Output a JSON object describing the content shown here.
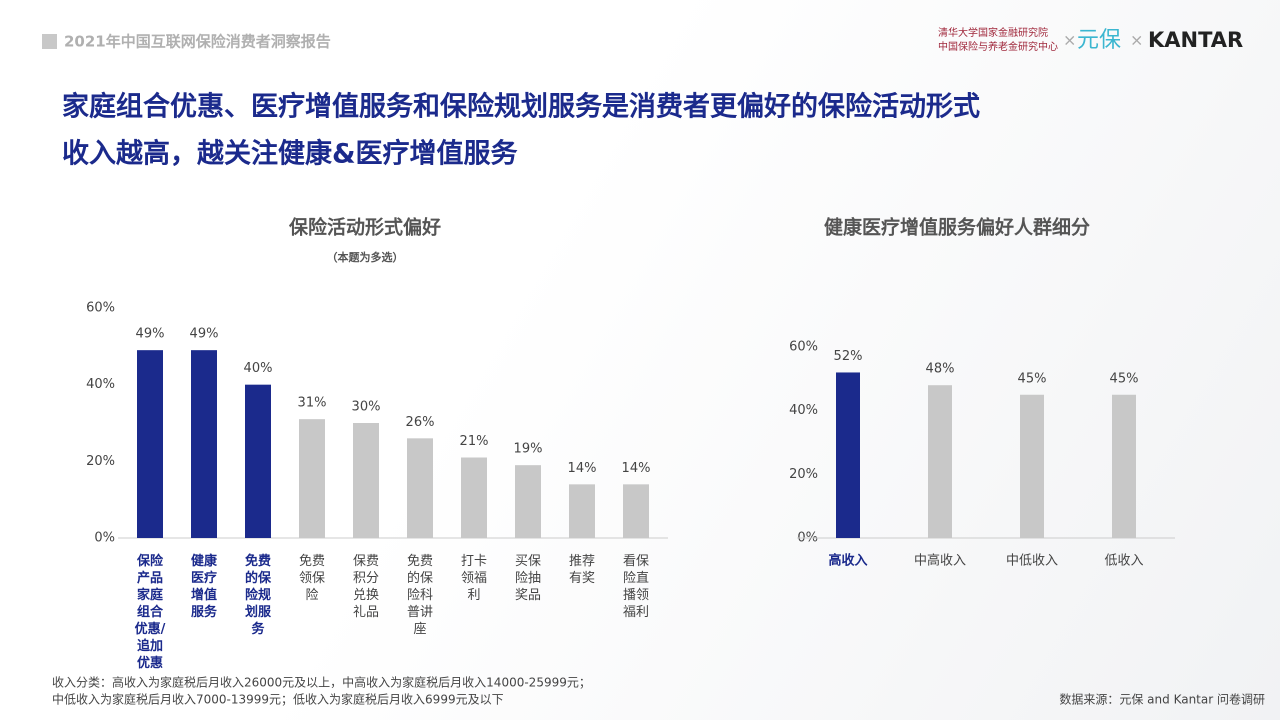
{
  "header": {
    "report_title": "2021年中国互联网保险消费者洞察报告",
    "logo_line1": "清华大学国家金融研究院",
    "logo_line2": "中国保险与养老金研究中心",
    "separator": "×",
    "brand1": "元保",
    "brand2": "KANTAR"
  },
  "headline": [
    "家庭组合优惠、医疗增值服务和保险规划服务是消费者更偏好的保险活动形式",
    "收入越高，越关注健康&医疗增值服务"
  ],
  "chart_data": [
    {
      "type": "bar",
      "title": "保险活动形式偏好",
      "subtitle": "（本题为多选）",
      "categories": [
        "保险产品家庭组合优惠/追加优惠",
        "健康医疗增值服务",
        "免费的保险规划服务",
        "免费领保险",
        "保费积分兑换礼品",
        "免费的保险科普讲座",
        "打卡领福利",
        "买保险抽奖品",
        "推荐有奖",
        "看保险直播领福利"
      ],
      "values": [
        49,
        49,
        40,
        31,
        30,
        26,
        21,
        19,
        14,
        14
      ],
      "value_labels": [
        "49%",
        "49%",
        "40%",
        "31%",
        "30%",
        "26%",
        "21%",
        "19%",
        "14%",
        "14%"
      ],
      "colors": [
        "#1b2a8c",
        "#1b2a8c",
        "#1b2a8c",
        "#c8c8c8",
        "#c8c8c8",
        "#c8c8c8",
        "#c8c8c8",
        "#c8c8c8",
        "#c8c8c8",
        "#c8c8c8"
      ],
      "ylim": [
        0,
        60
      ],
      "yticks": [
        {
          "value": 0,
          "label": "0%"
        },
        {
          "value": 20,
          "label": "20%"
        },
        {
          "value": 40,
          "label": "40%"
        },
        {
          "value": 60,
          "label": "60%"
        }
      ]
    },
    {
      "type": "bar",
      "title": "健康医疗增值服务偏好人群细分",
      "categories": [
        "高收入",
        "中高收入",
        "中低收入",
        "低收入"
      ],
      "values": [
        52,
        48,
        45,
        45
      ],
      "value_labels": [
        "52%",
        "48%",
        "45%",
        "45%"
      ],
      "colors": [
        "#1b2a8c",
        "#c8c8c8",
        "#c8c8c8",
        "#c8c8c8"
      ],
      "ylim": [
        0,
        60
      ],
      "yticks": [
        {
          "value": 0,
          "label": "0%"
        },
        {
          "value": 20,
          "label": "20%"
        },
        {
          "value": 40,
          "label": "40%"
        },
        {
          "value": 60,
          "label": "60%"
        }
      ]
    }
  ],
  "footnote": [
    "收入分类：高收入为家庭税后月收入26000元及以上，中高收入为家庭税后月收入14000-25999元；",
    "中低收入为家庭税后月收入7000-13999元；低收入为家庭税后月收入6999元及以下"
  ],
  "source": "数据来源：元保 and Kantar 问卷调研"
}
